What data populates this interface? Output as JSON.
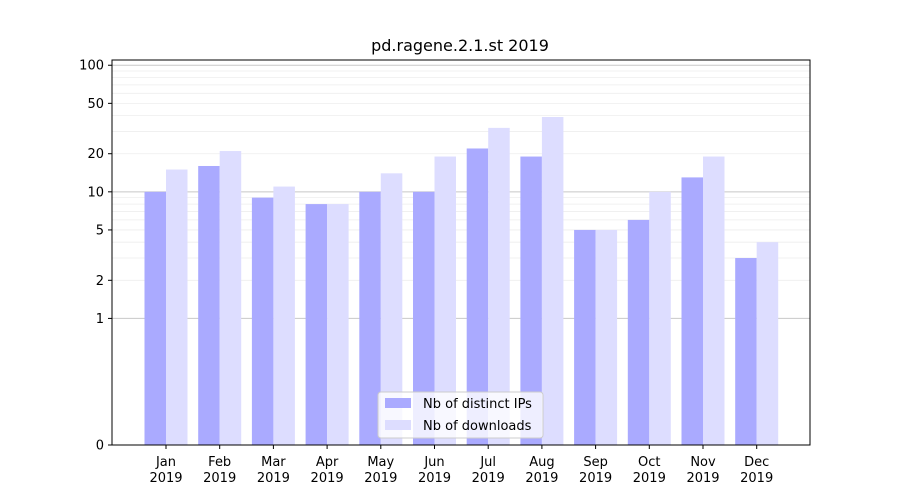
{
  "chart_data": {
    "type": "bar",
    "title": "pd.ragene.2.1.st 2019",
    "xlabel": "",
    "ylabel": "",
    "y_scale": "symlog",
    "ylim": [
      0,
      110
    ],
    "yticks": [
      0,
      1,
      2,
      5,
      10,
      20,
      50,
      100
    ],
    "ytick_labels": [
      "0",
      "1",
      "2",
      "5",
      "10",
      "20",
      "50",
      "100"
    ],
    "categories": [
      "Jan\n2019",
      "Feb\n2019",
      "Mar\n2019",
      "Apr\n2019",
      "May\n2019",
      "Jun\n2019",
      "Jul\n2019",
      "Aug\n2019",
      "Sep\n2019",
      "Oct\n2019",
      "Nov\n2019",
      "Dec\n2019"
    ],
    "series": [
      {
        "name": "Nb of distinct IPs",
        "color": "#aaaaff",
        "values": [
          10,
          16,
          9,
          8,
          10,
          10,
          22,
          19,
          5,
          6,
          13,
          3
        ]
      },
      {
        "name": "Nb of downloads",
        "color": "#ddddff",
        "values": [
          15,
          21,
          11,
          8,
          14,
          19,
          32,
          39,
          5,
          10,
          19,
          4
        ]
      }
    ],
    "grid": true,
    "legend_position": "bottom-center"
  }
}
